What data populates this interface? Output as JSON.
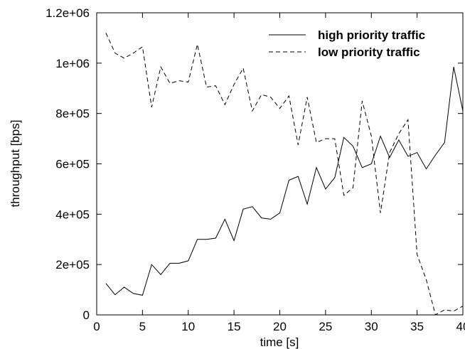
{
  "chart_data": {
    "type": "line",
    "xlabel": "time [s]",
    "ylabel": "throughput [bps]",
    "xlim": [
      0,
      40
    ],
    "ylim": [
      0,
      1200000
    ],
    "grid": false,
    "legend_position": "top-right",
    "x_ticks": [
      0,
      5,
      10,
      15,
      20,
      25,
      30,
      35,
      40
    ],
    "x_tick_labels": [
      "0",
      "5",
      "10",
      "15",
      "20",
      "25",
      "30",
      "35",
      "40"
    ],
    "y_ticks": [
      0,
      200000,
      400000,
      600000,
      800000,
      1000000,
      1200000
    ],
    "y_tick_labels": [
      "0",
      "2e+05",
      "4e+05",
      "6e+05",
      "8e+05",
      "1e+06",
      "1.2e+06"
    ],
    "x": [
      1,
      2,
      3,
      4,
      5,
      6,
      7,
      8,
      9,
      10,
      11,
      12,
      13,
      14,
      15,
      16,
      17,
      18,
      19,
      20,
      21,
      22,
      23,
      24,
      25,
      26,
      27,
      28,
      29,
      30,
      31,
      32,
      33,
      34,
      35,
      36,
      37,
      38,
      39,
      40
    ],
    "series": [
      {
        "name": "high priority traffic",
        "line_style": "solid",
        "color": "#000000",
        "values": [
          125000,
          80000,
          110000,
          85000,
          78000,
          200000,
          160000,
          205000,
          205000,
          215000,
          300000,
          300000,
          305000,
          380000,
          295000,
          420000,
          430000,
          385000,
          380000,
          405000,
          535000,
          550000,
          440000,
          585000,
          500000,
          545000,
          705000,
          670000,
          585000,
          600000,
          710000,
          625000,
          695000,
          630000,
          645000,
          580000,
          635000,
          685000,
          985000,
          810000
        ]
      },
      {
        "name": "low priority traffic",
        "line_style": "dashed",
        "color": "#000000",
        "values": [
          1120000,
          1040000,
          1020000,
          1040000,
          1065000,
          825000,
          985000,
          920000,
          930000,
          925000,
          1075000,
          905000,
          910000,
          835000,
          915000,
          980000,
          810000,
          875000,
          865000,
          820000,
          870000,
          675000,
          865000,
          685000,
          700000,
          700000,
          475000,
          505000,
          850000,
          710000,
          405000,
          645000,
          720000,
          775000,
          240000,
          140000,
          0,
          20000,
          15000,
          35000
        ]
      }
    ]
  }
}
